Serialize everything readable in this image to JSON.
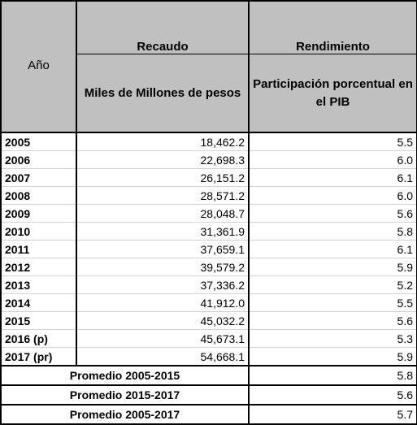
{
  "table": {
    "headers": {
      "year": "Año",
      "recaudo": "Recaudo",
      "rendimiento": "Rendimiento",
      "recaudo_unit": "Miles de Millones de pesos",
      "rendimiento_unit": "Participación porcentual en el PIB"
    },
    "rows": [
      {
        "year": "2005",
        "recaudo": "18,462.2",
        "pib": "5.5"
      },
      {
        "year": "2006",
        "recaudo": "22,698.3",
        "pib": "6.0"
      },
      {
        "year": "2007",
        "recaudo": "26,151.2",
        "pib": "6.1"
      },
      {
        "year": "2008",
        "recaudo": "28,571.2",
        "pib": "6.0"
      },
      {
        "year": "2009",
        "recaudo": "28,048.7",
        "pib": "5.6"
      },
      {
        "year": "2010",
        "recaudo": "31,361.9",
        "pib": "5.8"
      },
      {
        "year": "2011",
        "recaudo": "37,659.1",
        "pib": "6.1"
      },
      {
        "year": "2012",
        "recaudo": "39,579.2",
        "pib": "5.9"
      },
      {
        "year": "2013",
        "recaudo": "37,336.2",
        "pib": "5.2"
      },
      {
        "year": "2014",
        "recaudo": "41,912.0",
        "pib": "5.5"
      },
      {
        "year": "2015",
        "recaudo": "45,032.2",
        "pib": "5.6"
      },
      {
        "year": "2016 (p)",
        "recaudo": "45,673.1",
        "pib": "5.3"
      },
      {
        "year": "2017 (pr)",
        "recaudo": "54,668.1",
        "pib": "5.9"
      }
    ],
    "averages": [
      {
        "label": "Promedio 2005-2015",
        "pib": "5.8"
      },
      {
        "label": "Promedio 2015-2017",
        "pib": "5.6"
      },
      {
        "label": "Promedio 2005-2017",
        "pib": "5.7"
      }
    ]
  }
}
